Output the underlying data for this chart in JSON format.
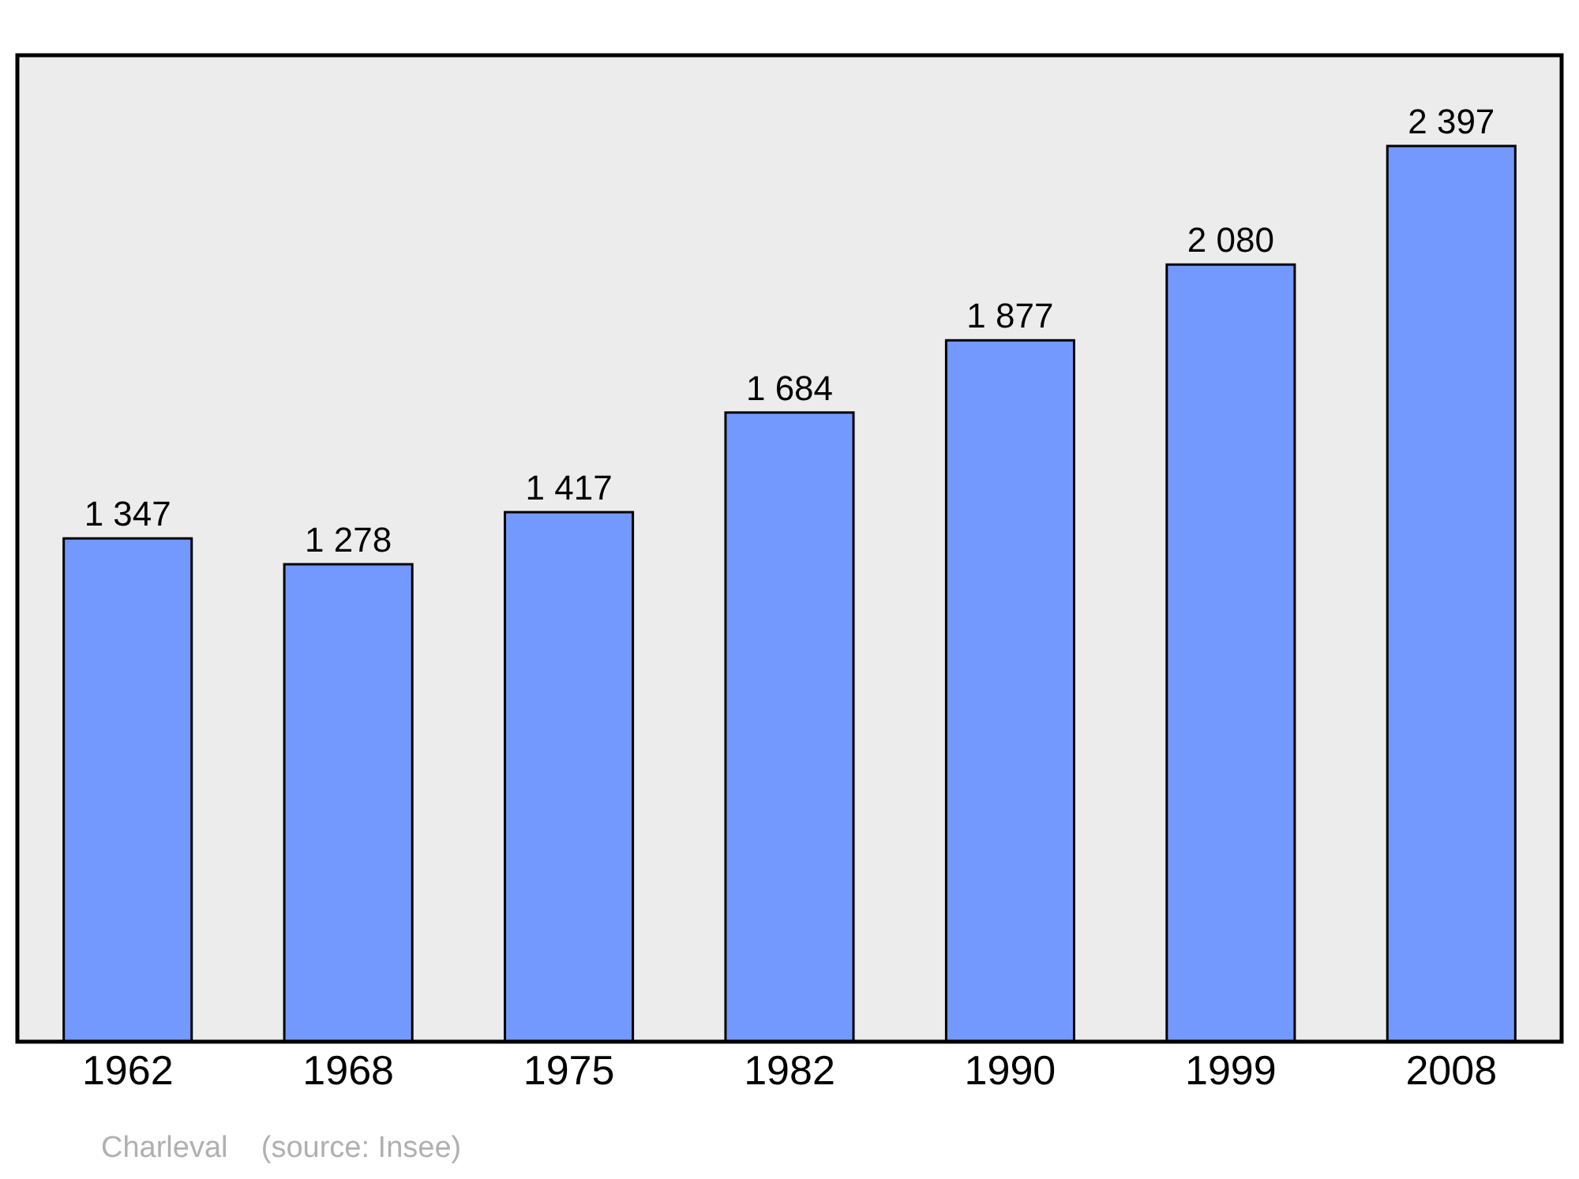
{
  "chart_data": {
    "type": "bar",
    "categories": [
      "1962",
      "1968",
      "1975",
      "1982",
      "1990",
      "1999",
      "2008"
    ],
    "values": [
      1347,
      1278,
      1417,
      1684,
      1877,
      2080,
      2397
    ],
    "value_labels": [
      "1 347",
      "1 278",
      "1 417",
      "1 684",
      "1 877",
      "2 080",
      "2 397"
    ],
    "color": "#7399ff",
    "ylim": [
      0,
      2640
    ],
    "tick_labels": "x",
    "grid": false,
    "annotations": [
      "Charleval    (source: Insee)"
    ]
  }
}
